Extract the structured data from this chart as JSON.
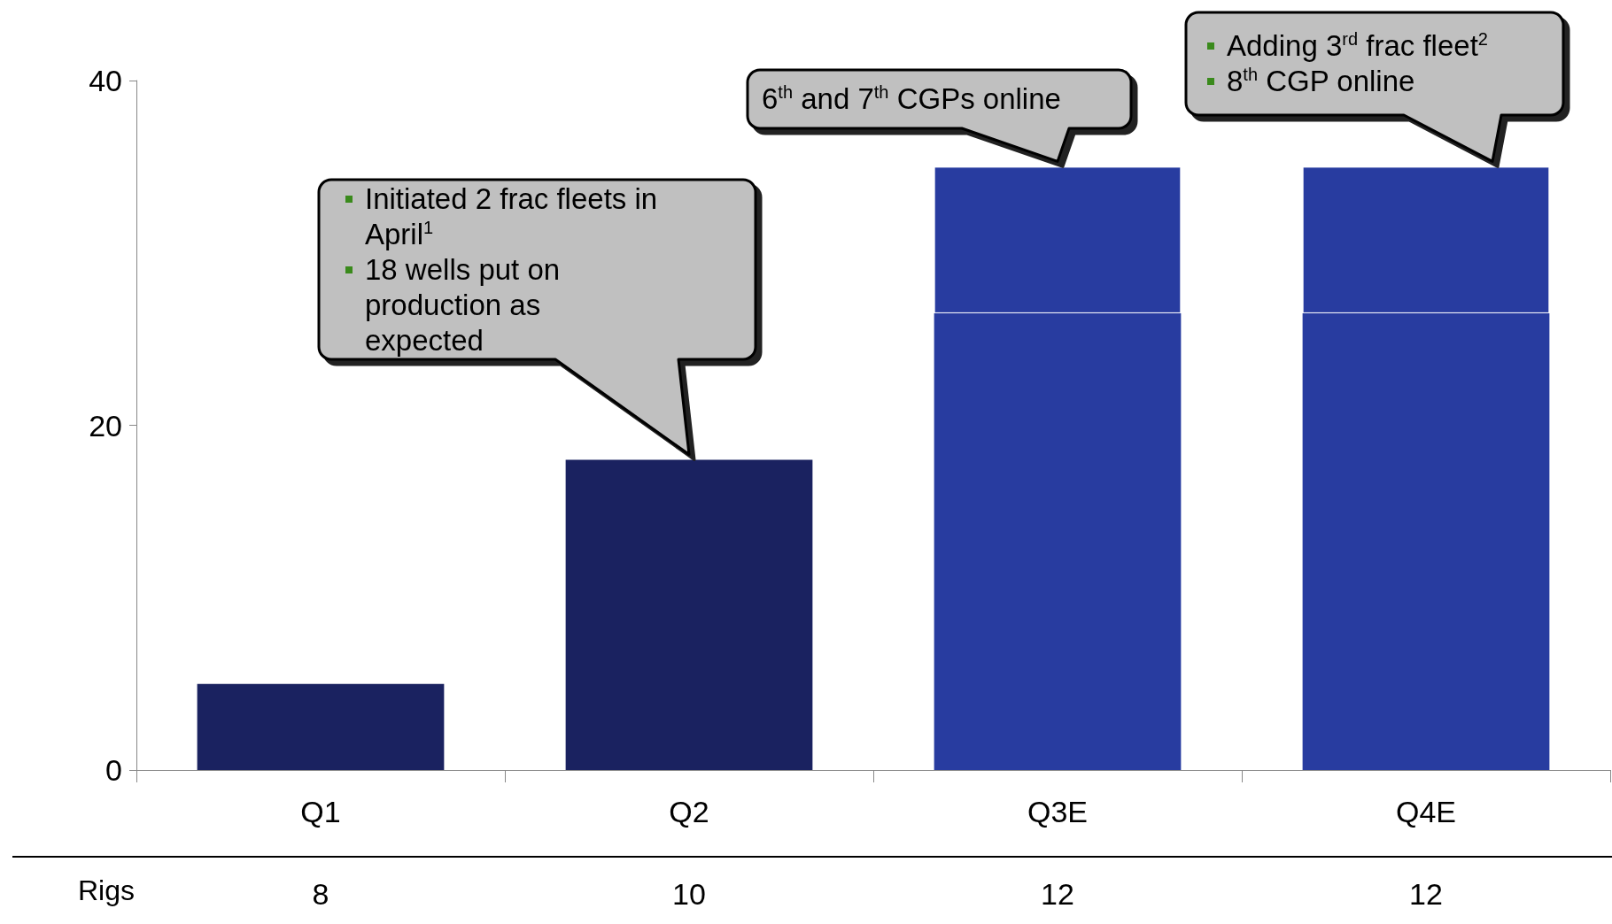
{
  "chart_data": {
    "type": "bar",
    "stacked": true,
    "categories": [
      "Q1",
      "Q2",
      "Q3E",
      "Q4E"
    ],
    "series": [
      {
        "values": [
          5,
          18,
          26.5,
          26.5
        ],
        "colors": [
          "#1a2260",
          "#1a2260",
          "#283ca0",
          "#283ca0"
        ]
      },
      {
        "values": [
          null,
          null,
          8.5,
          8.5
        ],
        "color": "#283ca0"
      }
    ],
    "ylim": [
      0,
      40
    ],
    "yticks": [
      0,
      20,
      40
    ],
    "grid": false,
    "annotations": [
      "Initiated 2 frac fleets in April$^{1}$\n18 wells put on production as expected",
      "6$^{th}$ and 7$^{th}$ CGPs online",
      "Adding 3$^{rd}$ frac fleet$^{2}$\n8$^{th}$ CGP online",
      "Rigs",
      "8",
      "10",
      "12",
      "12"
    ]
  }
}
